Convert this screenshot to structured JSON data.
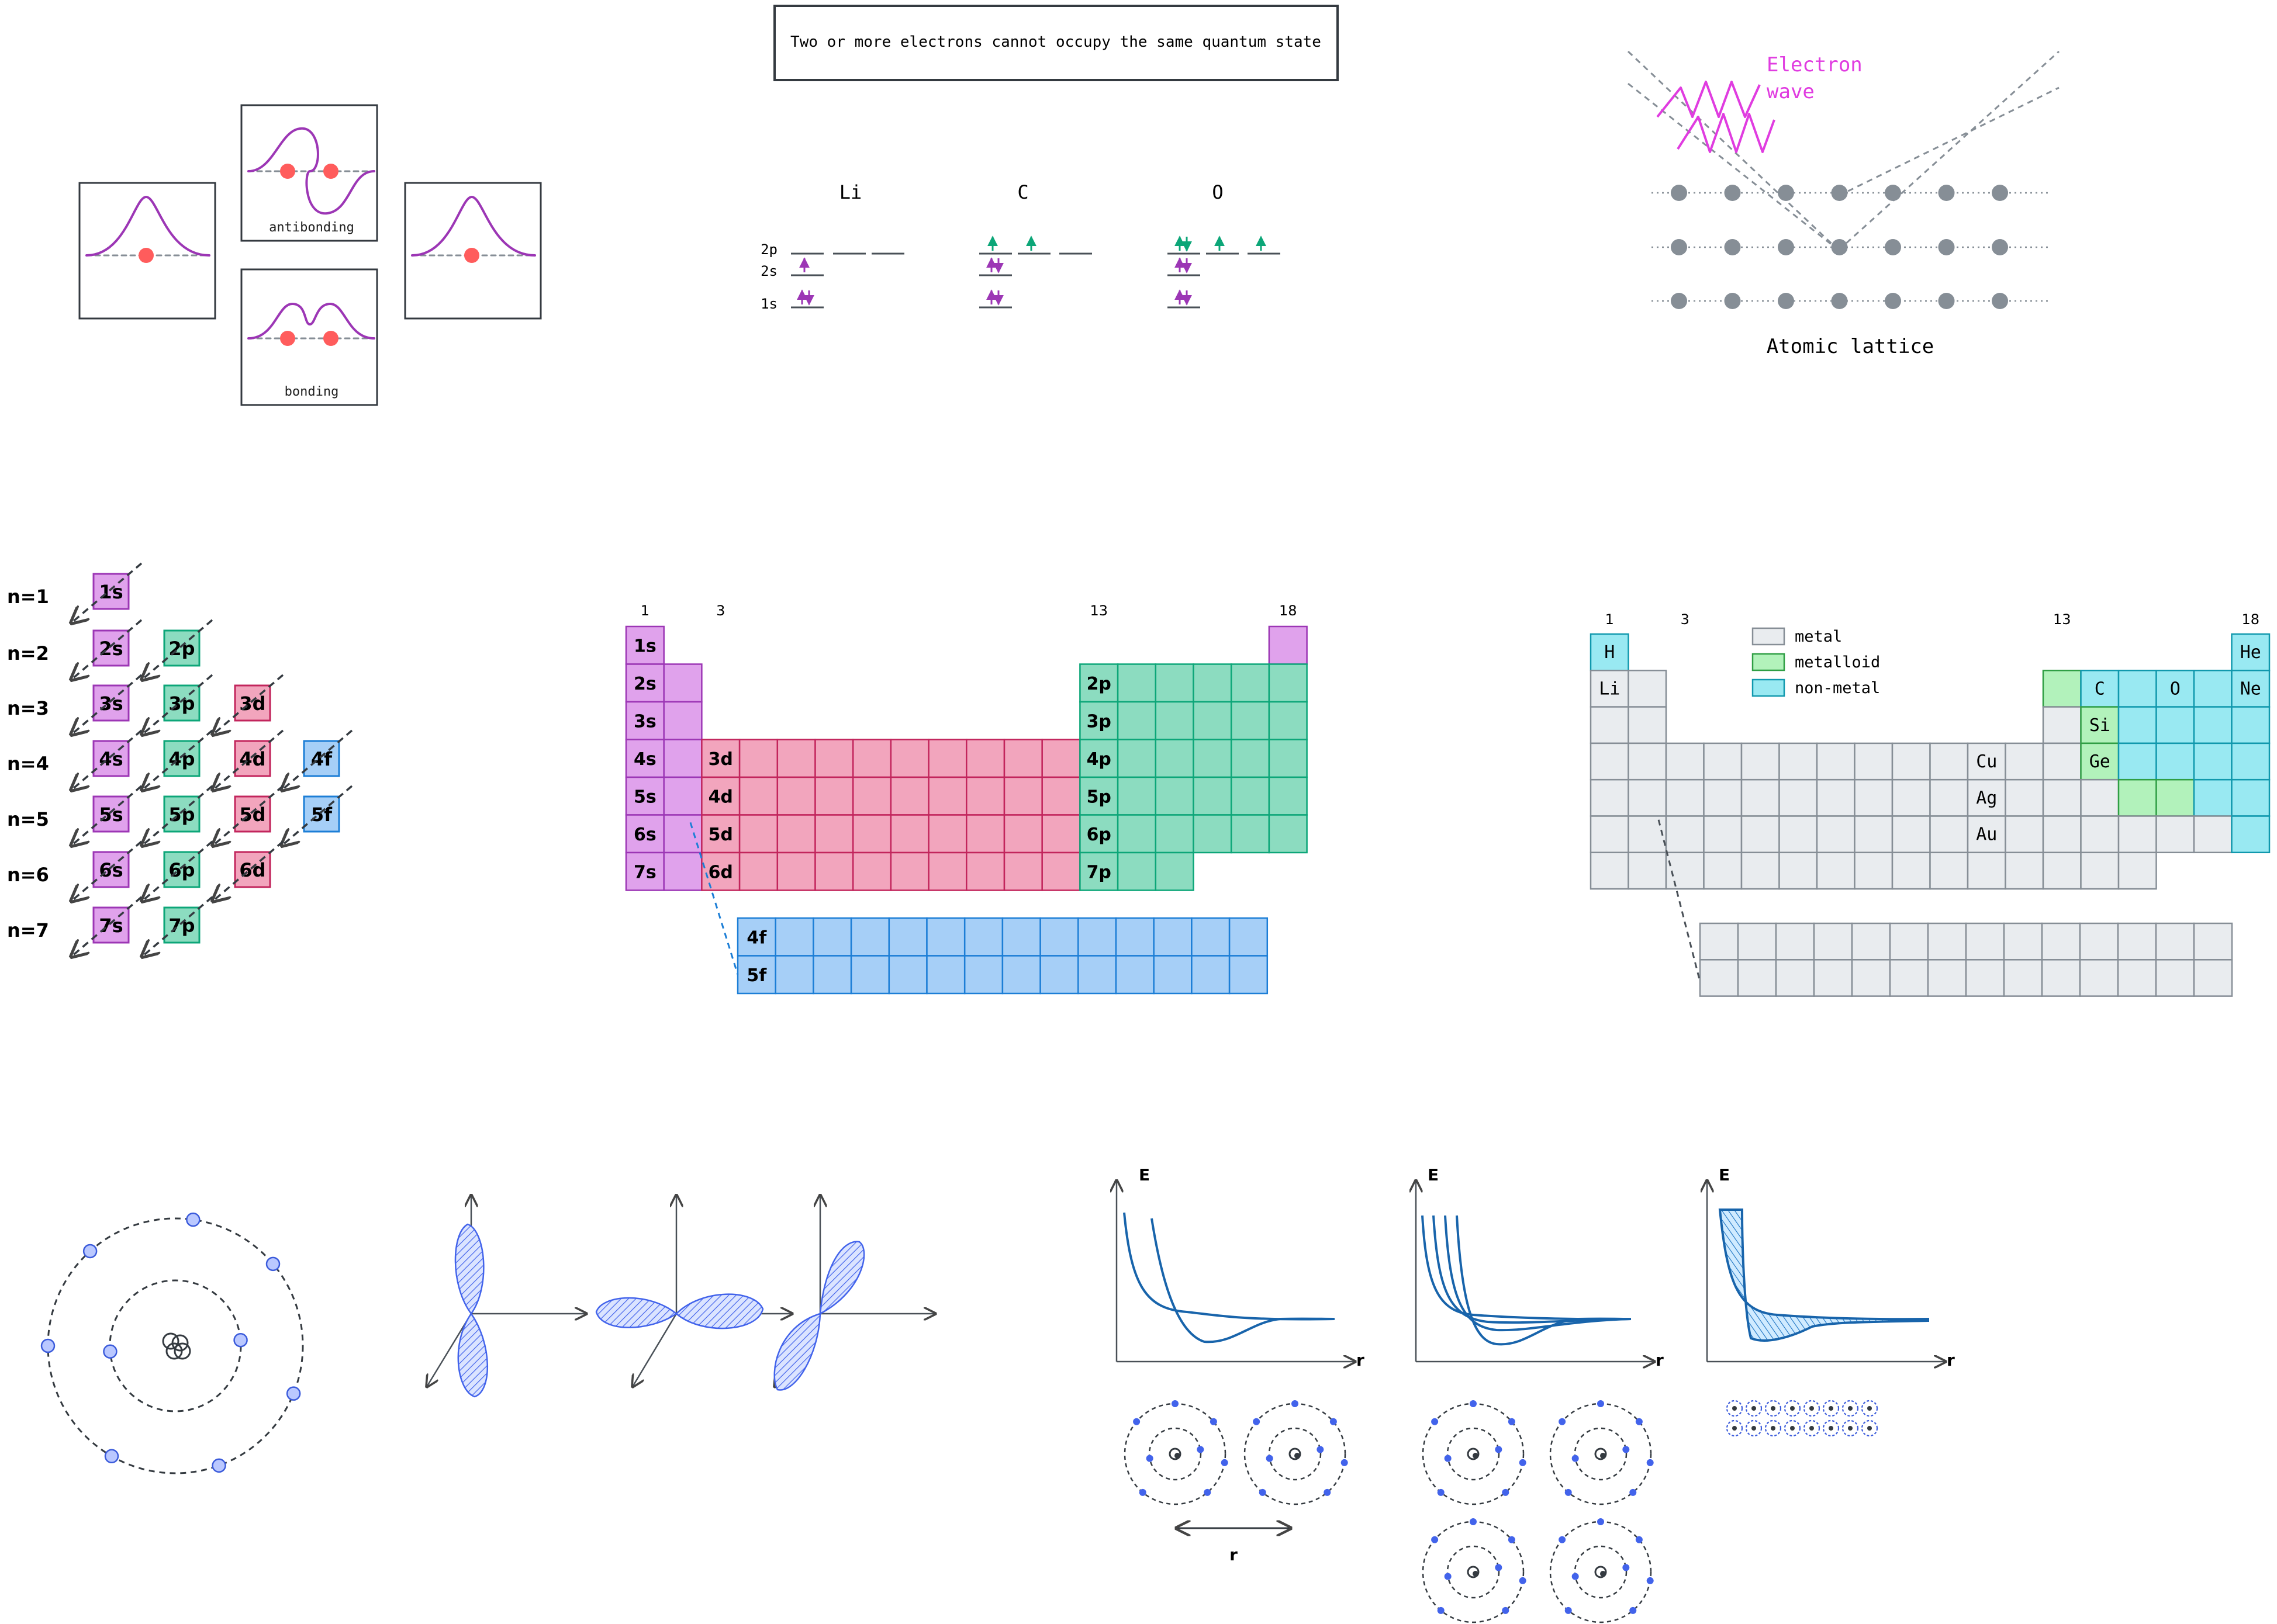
{
  "pauli": {
    "statement": "Two or more electrons cannot occupy the same quantum state",
    "elements": [
      "Li",
      "C",
      "O"
    ],
    "level_labels": [
      "2p",
      "2s",
      "1s"
    ]
  },
  "bonding": {
    "antibonding_label": "antibonding",
    "bonding_label": "bonding"
  },
  "diffraction": {
    "wave_label": "Electron wave",
    "lattice_label": "Atomic lattice"
  },
  "aufbau": {
    "shells": [
      "n=1",
      "n=2",
      "n=3",
      "n=4",
      "n=5",
      "n=6",
      "n=7"
    ],
    "rows": [
      [
        "1s"
      ],
      [
        "2s",
        "2p"
      ],
      [
        "3s",
        "3p",
        "3d"
      ],
      [
        "4s",
        "4p",
        "4d",
        "4f"
      ],
      [
        "5s",
        "5p",
        "5d",
        "5f"
      ],
      [
        "6s",
        "6p",
        "6d"
      ],
      [
        "7s",
        "7p"
      ]
    ]
  },
  "block_table": {
    "group_labels": [
      "1",
      "3",
      "13",
      "18"
    ],
    "s_labels": [
      "1s",
      "2s",
      "3s",
      "4s",
      "5s",
      "6s",
      "7s"
    ],
    "d_labels": [
      "3d",
      "4d",
      "5d",
      "6d"
    ],
    "p_labels": [
      "2p",
      "3p",
      "4p",
      "5p",
      "6p",
      "7p"
    ],
    "f_labels": [
      "4f",
      "5f"
    ]
  },
  "class_table": {
    "group_labels": [
      "1",
      "3",
      "13",
      "18"
    ],
    "legend": [
      {
        "label": "metal",
        "color": "#e9ecef"
      },
      {
        "label": "metalloid",
        "color": "#b2f2bb"
      },
      {
        "label": "non-metal",
        "color": "#99e9f2"
      }
    ],
    "elements": [
      "H",
      "He",
      "Li",
      "C",
      "O",
      "Ne",
      "Si",
      "Ge",
      "Cu",
      "Ag",
      "Au"
    ]
  },
  "potentials": {
    "axis_y": "E",
    "axis_x": "r",
    "distance_label": "r"
  },
  "colors": {
    "s": "#e0a2ec",
    "p": "#8cdcc0",
    "d": "#f2a5bd",
    "f": "#a6cff7",
    "metal": "#e9ecef",
    "metalloid": "#b2f2bb",
    "nonmetal": "#99e9f2",
    "wave": "#e03ce0",
    "curve": "#1864ab",
    "electron": "#ff5c5c",
    "orbital": "#4263eb"
  }
}
